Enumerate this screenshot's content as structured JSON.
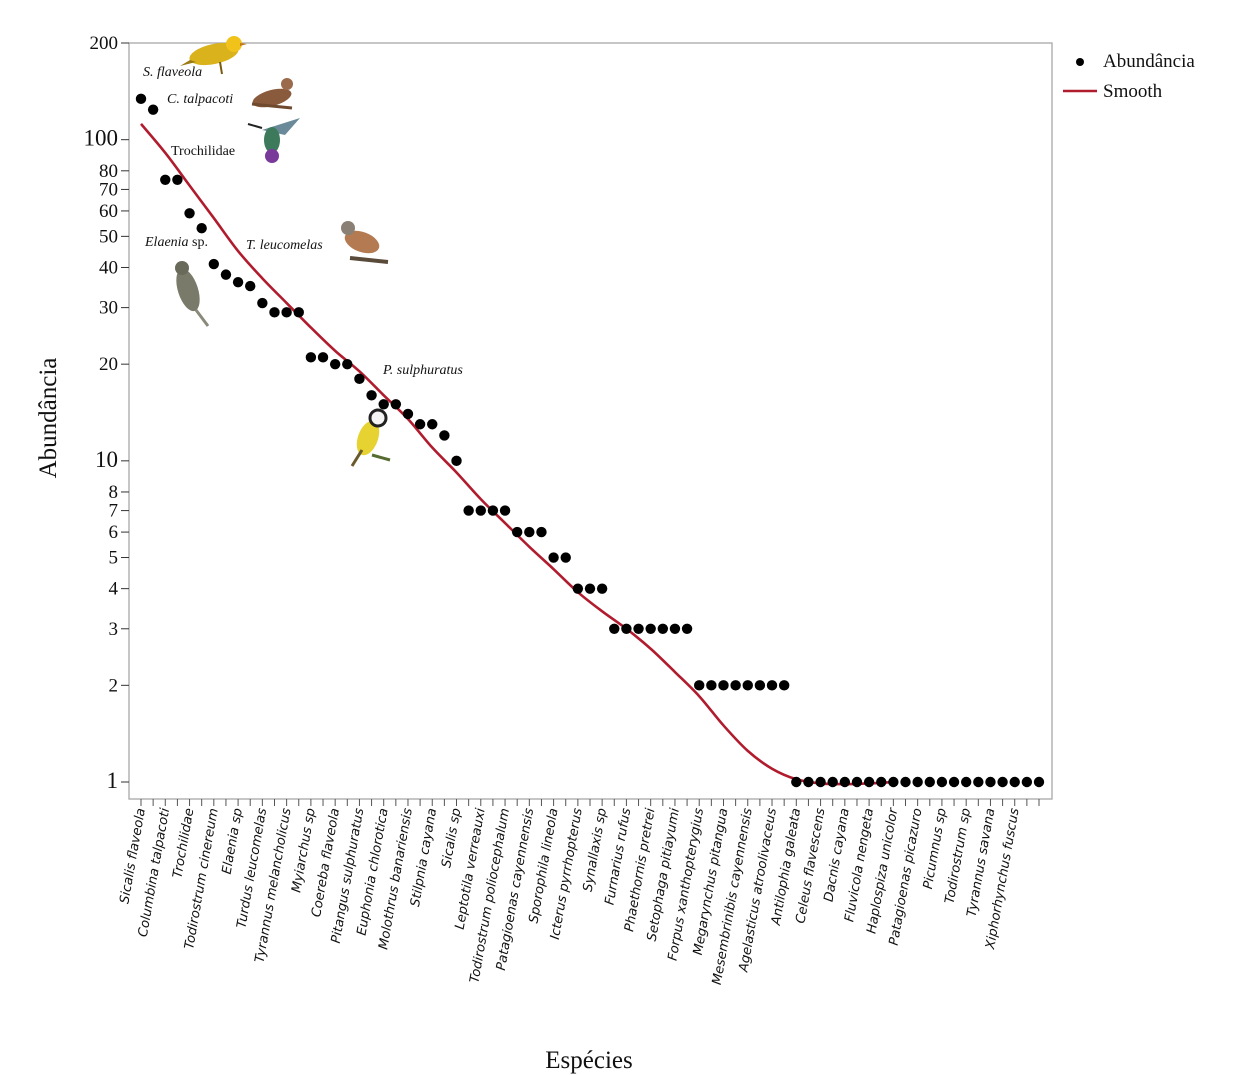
{
  "chart_data": {
    "type": "scatter",
    "title": "",
    "xlabel": "Espécies",
    "ylabel": "Abundância",
    "yscale": "log",
    "ylim": [
      0.85,
      200
    ],
    "grid": false,
    "legend_position": "top-right",
    "y_ticks": [
      1,
      2,
      3,
      4,
      5,
      6,
      7,
      8,
      10,
      20,
      30,
      40,
      50,
      60,
      70,
      80,
      100,
      200
    ],
    "x_tick_labels": [
      "Sicalis flaveola",
      "Columbina talpacoti",
      "Trochilidae",
      "Todirostrum cinereum",
      "Elaenia sp",
      "Turdus leucomelas",
      "Tyrannus melancholicus",
      "Myiarchus sp",
      "Coereba flaveola",
      "Pitangus sulphuratus",
      "Euphonia chlorotica",
      "Molothrus banariensis",
      "Stilpnia cayana",
      "Sicalis sp",
      "Leptotila verreauxi",
      "Todirostrum poliocephalum",
      "Patagioenas cayennensis",
      "Sporophila lineola",
      "Icterus pyrrhopterus",
      "Synallaxis sp",
      "Furnarius rufus",
      "Phaethornis pretrei",
      "Setophaga pitiayumi",
      "Forpus xanthopterygius",
      "Megarynchus pitangua",
      "Mesembrinibis cayennensis",
      "Agelasticus atroolivaceus",
      "Antilophia galeata",
      "Celeus flavescens",
      "Dacnis cayana",
      "Fluvicola nengeta",
      "Haplospiza unicolor",
      "Patagioenas picazuro",
      "Picumnus sp",
      "Todirostrum sp",
      "Tyrannus savana",
      "Xiphorhynchus fuscus"
    ],
    "series": [
      {
        "name": "Abundância",
        "marker": "dot",
        "color": "#000000",
        "values": [
          134,
          124,
          75,
          75,
          59,
          53,
          41,
          38,
          36,
          35,
          31,
          29,
          29,
          29,
          21,
          21,
          20,
          20,
          18,
          16,
          15,
          15,
          14,
          13,
          13,
          12,
          10,
          7,
          7,
          7,
          7,
          6,
          6,
          6,
          5,
          5,
          4,
          4,
          4,
          3,
          3,
          3,
          3,
          3,
          3,
          3,
          2,
          2,
          2,
          2,
          2,
          2,
          2,
          2,
          1,
          1,
          1,
          1,
          1,
          1,
          1,
          1,
          1,
          1,
          1,
          1,
          1,
          1,
          1,
          1,
          1,
          1,
          1,
          1,
          1
        ]
      },
      {
        "name": "Smooth",
        "marker": "line",
        "color": "#b01c2e",
        "values": [
          112,
          91,
          72,
          57,
          45,
          37,
          31,
          26,
          22,
          19,
          16,
          13.5,
          11,
          9.2,
          7.6,
          6.4,
          5.4,
          4.6,
          3.9,
          3.4,
          3.0,
          2.6,
          2.2,
          1.85,
          1.5,
          1.25,
          1.1,
          1.02,
          0.99,
          0.985,
          0.99,
          1.0
        ],
        "x_positions": [
          1,
          3,
          5,
          7,
          9,
          11,
          13,
          15,
          17,
          19,
          21,
          23,
          25,
          27,
          29,
          31,
          33,
          35,
          37,
          39,
          41,
          43,
          45,
          47,
          49,
          51,
          53,
          55,
          57,
          59,
          61,
          63
        ]
      }
    ],
    "annotations": [
      {
        "label": "S. flaveola",
        "italic": true,
        "image": "yellow-finch"
      },
      {
        "label": "C. talpacoti",
        "italic": true,
        "image": "ground-dove"
      },
      {
        "label": "Trochilidae",
        "italic": false,
        "image": "hummingbird"
      },
      {
        "label": "Elaenia",
        "suffix": " sp.",
        "italic": true,
        "image": "elaenia-bird"
      },
      {
        "label": "T. leucomelas",
        "italic": true,
        "image": "thrush"
      },
      {
        "label": "P. sulphuratus",
        "italic": true,
        "image": "kiskadee"
      }
    ]
  }
}
